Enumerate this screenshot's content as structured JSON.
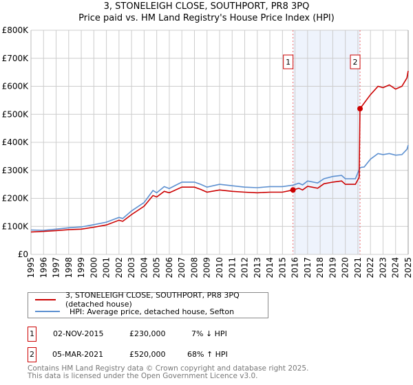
{
  "chart_data": {
    "type": "line",
    "title": "3, STONELEIGH CLOSE, SOUTHPORT, PR8 3PQ",
    "subtitle": "Price paid vs. HM Land Registry's House Price Index (HPI)",
    "xlim": [
      1995,
      2025
    ],
    "ylim": [
      0,
      800000
    ],
    "y_ticks": [
      "£0",
      "£100K",
      "£200K",
      "£300K",
      "£400K",
      "£500K",
      "£600K",
      "£700K",
      "£800K"
    ],
    "x_ticks": [
      "1995",
      "1996",
      "1997",
      "1998",
      "1999",
      "2000",
      "2001",
      "2002",
      "2003",
      "2004",
      "2005",
      "2006",
      "2007",
      "2008",
      "2009",
      "2010",
      "2011",
      "2012",
      "2013",
      "2014",
      "2015",
      "2016",
      "2017",
      "2018",
      "2019",
      "2020",
      "2021",
      "2022",
      "2023",
      "2024",
      "2025"
    ],
    "grid": true,
    "series": [
      {
        "name": "3, STONELEIGH CLOSE, SOUTHPORT, PR8 3PQ (detached house)",
        "color": "#cc0000",
        "x": [
          1995,
          1996,
          1997,
          1998,
          1999,
          2000,
          2001,
          2002,
          2002.3,
          2003,
          2004,
          2004.7,
          2005,
          2005.6,
          2006,
          2007,
          2008,
          2008.5,
          2009,
          2010,
          2011,
          2012,
          2013,
          2014,
          2015,
          2015.84,
          2016.3,
          2016.6,
          2017,
          2017.8,
          2018.3,
          2019,
          2019.7,
          2020,
          2020.8,
          2021.1,
          2021.17,
          2021.5,
          2022,
          2022.6,
          2023,
          2023.5,
          2024,
          2024.5,
          2024.9,
          2025
        ],
        "y": [
          80000,
          82000,
          85000,
          88000,
          90000,
          97000,
          105000,
          122000,
          118000,
          142000,
          172000,
          210000,
          205000,
          225000,
          220000,
          240000,
          240000,
          232000,
          222000,
          230000,
          225000,
          222000,
          220000,
          222000,
          222000,
          230000,
          236000,
          230000,
          243000,
          236000,
          252000,
          258000,
          262000,
          250000,
          250000,
          275000,
          520000,
          540000,
          570000,
          600000,
          595000,
          605000,
          590000,
          600000,
          630000,
          655000
        ]
      },
      {
        "name": "HPI: Average price, detached house, Sefton",
        "color": "#5b8fd0",
        "x": [
          1995,
          1996,
          1997,
          1998,
          1999,
          2000,
          2001,
          2002,
          2002.3,
          2003,
          2004,
          2004.7,
          2005,
          2005.6,
          2006,
          2007,
          2008,
          2008.5,
          2009,
          2010,
          2011,
          2012,
          2013,
          2014,
          2015,
          2015.84,
          2016.3,
          2016.6,
          2017,
          2017.8,
          2018.3,
          2019,
          2019.7,
          2020,
          2020.8,
          2021.17,
          2021.5,
          2022,
          2022.6,
          2023,
          2023.5,
          2024,
          2024.5,
          2024.9,
          2025
        ],
        "y": [
          87000,
          86000,
          90000,
          95000,
          98000,
          106000,
          115000,
          132000,
          128000,
          155000,
          185000,
          228000,
          220000,
          242000,
          235000,
          258000,
          258000,
          250000,
          240000,
          250000,
          245000,
          240000,
          238000,
          242000,
          242000,
          247000,
          254000,
          248000,
          262000,
          255000,
          270000,
          278000,
          282000,
          270000,
          270000,
          310000,
          312000,
          340000,
          360000,
          356000,
          360000,
          354000,
          356000,
          375000,
          390000
        ]
      }
    ],
    "sales": [
      {
        "label": "1",
        "x": 2015.84,
        "y": 230000
      },
      {
        "label": "2",
        "x": 2021.17,
        "y": 520000
      }
    ],
    "shade": [
      2015.84,
      2021.17
    ]
  },
  "legend": {
    "property": "3, STONELEIGH CLOSE, SOUTHPORT, PR8 3PQ (detached house)",
    "hpi": "HPI: Average price, detached house, Sefton"
  },
  "transactions": [
    {
      "num": "1",
      "date": "02-NOV-2015",
      "price": "£230,000",
      "delta": "7% ↓ HPI"
    },
    {
      "num": "2",
      "date": "05-MAR-2021",
      "price": "£520,000",
      "delta": "68% ↑ HPI"
    }
  ],
  "footer": {
    "line1": "Contains HM Land Registry data © Crown copyright and database right 2025.",
    "line2": "This data is licensed under the Open Government Licence v3.0."
  }
}
